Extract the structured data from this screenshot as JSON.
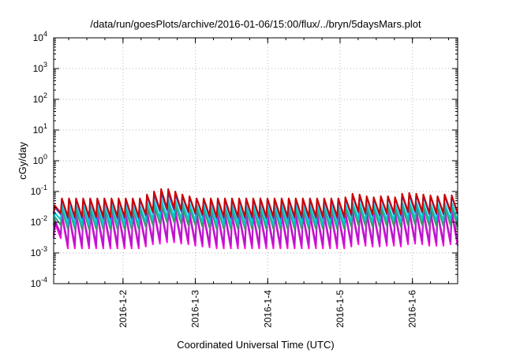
{
  "chart_data": {
    "type": "line",
    "title": "/data/run/goesPlots/archive/2016-01-06/15:00/flux/../bryn/5daysMars.plot",
    "xlabel": "Coordinated Universal Time (UTC)",
    "ylabel": "cGy/day",
    "y_scale": "log",
    "ylim": [
      0.0001,
      10000
    ],
    "xlim": [
      "2016-01-01 01:00",
      "2016-01-06 15:00"
    ],
    "grid": true,
    "x_ticks": [
      "2016-1-2",
      "2016-1-3",
      "2016-1-4",
      "2016-1-5",
      "2016-1-6"
    ],
    "y_ticks": [
      {
        "base": "10",
        "exp": "-4"
      },
      {
        "base": "10",
        "exp": "-3"
      },
      {
        "base": "10",
        "exp": "-2"
      },
      {
        "base": "10",
        "exp": "-1"
      },
      {
        "base": "10",
        "exp": "0"
      },
      {
        "base": "10",
        "exp": "1"
      },
      {
        "base": "10",
        "exp": "2"
      },
      {
        "base": "10",
        "exp": "3"
      },
      {
        "base": "10",
        "exp": "4"
      }
    ],
    "series": [
      {
        "color": "#cc0000",
        "peaks": [
          0.035,
          0.06,
          0.06,
          0.06,
          0.06,
          0.06,
          0.06,
          0.06,
          0.06,
          0.06,
          0.06,
          0.06,
          0.06,
          0.08,
          0.1,
          0.12,
          0.12,
          0.1,
          0.08,
          0.07,
          0.06,
          0.06,
          0.06,
          0.06,
          0.06,
          0.06,
          0.06,
          0.06,
          0.06,
          0.06,
          0.06,
          0.06,
          0.06,
          0.06,
          0.06,
          0.06,
          0.06,
          0.06,
          0.06,
          0.06,
          0.06,
          0.065,
          0.085,
          0.08,
          0.07,
          0.065,
          0.07,
          0.07,
          0.065,
          0.085,
          0.09,
          0.085,
          0.08,
          0.075,
          0.07,
          0.08,
          0.075
        ],
        "troughs": [
          0.02,
          0.015,
          0.015,
          0.015,
          0.015,
          0.015,
          0.015,
          0.015,
          0.015,
          0.015,
          0.015,
          0.015,
          0.018,
          0.022,
          0.025,
          0.028,
          0.028,
          0.025,
          0.022,
          0.02,
          0.018,
          0.016,
          0.015,
          0.015,
          0.015,
          0.015,
          0.015,
          0.015,
          0.015,
          0.015,
          0.015,
          0.015,
          0.015,
          0.015,
          0.015,
          0.015,
          0.015,
          0.015,
          0.015,
          0.015,
          0.015,
          0.018,
          0.022,
          0.02,
          0.018,
          0.018,
          0.02,
          0.02,
          0.018,
          0.022,
          0.024,
          0.022,
          0.02,
          0.02,
          0.02,
          0.022,
          0.02
        ]
      },
      {
        "color": "#1f5fd6",
        "peaks": [
          0.03,
          0.055,
          0.055,
          0.055,
          0.055,
          0.055,
          0.055,
          0.055,
          0.055,
          0.055,
          0.055,
          0.055,
          0.055,
          0.07,
          0.08,
          0.09,
          0.09,
          0.08,
          0.07,
          0.065,
          0.06,
          0.055,
          0.055,
          0.055,
          0.055,
          0.055,
          0.055,
          0.055,
          0.055,
          0.055,
          0.055,
          0.055,
          0.055,
          0.055,
          0.055,
          0.055,
          0.055,
          0.055,
          0.055,
          0.055,
          0.055,
          0.06,
          0.075,
          0.07,
          0.065,
          0.06,
          0.065,
          0.065,
          0.06,
          0.075,
          0.08,
          0.075,
          0.07,
          0.068,
          0.065,
          0.07,
          0.068
        ],
        "troughs": [
          0.018,
          0.013,
          0.013,
          0.013,
          0.013,
          0.013,
          0.013,
          0.013,
          0.013,
          0.013,
          0.013,
          0.013,
          0.016,
          0.02,
          0.022,
          0.024,
          0.024,
          0.022,
          0.02,
          0.018,
          0.016,
          0.014,
          0.013,
          0.013,
          0.013,
          0.013,
          0.013,
          0.013,
          0.013,
          0.013,
          0.013,
          0.013,
          0.013,
          0.013,
          0.013,
          0.013,
          0.013,
          0.013,
          0.013,
          0.013,
          0.013,
          0.016,
          0.02,
          0.018,
          0.016,
          0.016,
          0.018,
          0.018,
          0.016,
          0.02,
          0.021,
          0.02,
          0.018,
          0.018,
          0.018,
          0.02,
          0.018
        ]
      },
      {
        "color": "#00c8c8",
        "peaks": [
          0.02,
          0.035,
          0.035,
          0.035,
          0.035,
          0.035,
          0.035,
          0.035,
          0.035,
          0.035,
          0.035,
          0.035,
          0.035,
          0.045,
          0.05,
          0.055,
          0.055,
          0.05,
          0.045,
          0.04,
          0.038,
          0.035,
          0.035,
          0.035,
          0.035,
          0.035,
          0.035,
          0.035,
          0.035,
          0.035,
          0.035,
          0.035,
          0.035,
          0.035,
          0.035,
          0.035,
          0.035,
          0.035,
          0.035,
          0.035,
          0.035,
          0.038,
          0.045,
          0.042,
          0.04,
          0.038,
          0.04,
          0.04,
          0.038,
          0.045,
          0.048,
          0.045,
          0.042,
          0.041,
          0.04,
          0.042,
          0.041
        ],
        "troughs": [
          0.012,
          0.008,
          0.008,
          0.008,
          0.008,
          0.008,
          0.008,
          0.008,
          0.008,
          0.008,
          0.008,
          0.008,
          0.01,
          0.012,
          0.013,
          0.014,
          0.014,
          0.013,
          0.012,
          0.011,
          0.01,
          0.009,
          0.008,
          0.008,
          0.008,
          0.008,
          0.008,
          0.008,
          0.008,
          0.008,
          0.008,
          0.008,
          0.008,
          0.008,
          0.008,
          0.008,
          0.008,
          0.008,
          0.008,
          0.008,
          0.008,
          0.01,
          0.012,
          0.011,
          0.01,
          0.01,
          0.011,
          0.011,
          0.01,
          0.012,
          0.013,
          0.012,
          0.011,
          0.011,
          0.011,
          0.012,
          0.011
        ]
      },
      {
        "color": "#3a9a6a",
        "peaks": [
          0.015,
          0.028,
          0.028,
          0.028,
          0.028,
          0.028,
          0.028,
          0.028,
          0.028,
          0.028,
          0.028,
          0.028,
          0.028,
          0.032,
          0.035,
          0.038,
          0.038,
          0.035,
          0.032,
          0.03,
          0.029,
          0.028,
          0.028,
          0.028,
          0.028,
          0.028,
          0.028,
          0.028,
          0.028,
          0.028,
          0.028,
          0.028,
          0.028,
          0.028,
          0.028,
          0.028,
          0.028,
          0.028,
          0.028,
          0.028,
          0.028,
          0.03,
          0.034,
          0.032,
          0.031,
          0.03,
          0.031,
          0.031,
          0.03,
          0.034,
          0.036,
          0.034,
          0.032,
          0.032,
          0.031,
          0.032,
          0.032
        ],
        "troughs": [
          0.008,
          0.006,
          0.006,
          0.006,
          0.006,
          0.006,
          0.006,
          0.006,
          0.006,
          0.006,
          0.006,
          0.006,
          0.007,
          0.008,
          0.009,
          0.01,
          0.01,
          0.009,
          0.008,
          0.008,
          0.007,
          0.0065,
          0.006,
          0.006,
          0.006,
          0.006,
          0.006,
          0.006,
          0.006,
          0.006,
          0.006,
          0.006,
          0.006,
          0.006,
          0.006,
          0.006,
          0.006,
          0.006,
          0.006,
          0.006,
          0.006,
          0.007,
          0.008,
          0.0075,
          0.007,
          0.007,
          0.0075,
          0.0075,
          0.007,
          0.008,
          0.0085,
          0.008,
          0.0075,
          0.0075,
          0.0075,
          0.008,
          0.0075
        ]
      },
      {
        "color": "#b21ac8",
        "peaks": [
          0.012,
          0.02,
          0.02,
          0.02,
          0.02,
          0.02,
          0.02,
          0.02,
          0.02,
          0.02,
          0.02,
          0.02,
          0.02,
          0.024,
          0.026,
          0.028,
          0.028,
          0.026,
          0.024,
          0.022,
          0.021,
          0.02,
          0.02,
          0.02,
          0.02,
          0.02,
          0.02,
          0.02,
          0.02,
          0.02,
          0.02,
          0.02,
          0.02,
          0.02,
          0.02,
          0.02,
          0.02,
          0.02,
          0.02,
          0.02,
          0.02,
          0.022,
          0.025,
          0.024,
          0.023,
          0.022,
          0.023,
          0.023,
          0.022,
          0.025,
          0.026,
          0.025,
          0.024,
          0.024,
          0.023,
          0.024,
          0.024
        ],
        "troughs": [
          0.004,
          0.0018,
          0.0018,
          0.0018,
          0.0018,
          0.0018,
          0.0018,
          0.0018,
          0.0018,
          0.0018,
          0.0018,
          0.0018,
          0.002,
          0.0024,
          0.0026,
          0.0028,
          0.0028,
          0.0026,
          0.0024,
          0.0022,
          0.002,
          0.0019,
          0.0018,
          0.0018,
          0.0018,
          0.0018,
          0.0018,
          0.0018,
          0.0018,
          0.0018,
          0.0018,
          0.0018,
          0.0018,
          0.0018,
          0.0018,
          0.0018,
          0.0018,
          0.0018,
          0.0018,
          0.0018,
          0.0018,
          0.002,
          0.0024,
          0.0022,
          0.002,
          0.002,
          0.0022,
          0.0022,
          0.002,
          0.0024,
          0.0025,
          0.0024,
          0.0022,
          0.0022,
          0.0022,
          0.0024,
          0.0022
        ]
      },
      {
        "color": "#ff00e6",
        "peaks": [
          0.01,
          0.016,
          0.016,
          0.016,
          0.016,
          0.016,
          0.016,
          0.016,
          0.016,
          0.016,
          0.016,
          0.016,
          0.016,
          0.019,
          0.021,
          0.023,
          0.023,
          0.021,
          0.019,
          0.018,
          0.017,
          0.016,
          0.016,
          0.016,
          0.016,
          0.016,
          0.016,
          0.016,
          0.016,
          0.016,
          0.016,
          0.016,
          0.016,
          0.016,
          0.016,
          0.016,
          0.016,
          0.016,
          0.016,
          0.016,
          0.016,
          0.018,
          0.02,
          0.019,
          0.018,
          0.018,
          0.019,
          0.019,
          0.018,
          0.02,
          0.021,
          0.02,
          0.019,
          0.019,
          0.019,
          0.02,
          0.019
        ],
        "troughs": [
          0.003,
          0.0014,
          0.0014,
          0.0014,
          0.0014,
          0.0014,
          0.0014,
          0.0014,
          0.0014,
          0.0014,
          0.0014,
          0.0014,
          0.0016,
          0.0019,
          0.002,
          0.0022,
          0.0022,
          0.002,
          0.0019,
          0.0017,
          0.0016,
          0.0015,
          0.0014,
          0.0014,
          0.0014,
          0.0014,
          0.0014,
          0.0014,
          0.0014,
          0.0014,
          0.0014,
          0.0014,
          0.0014,
          0.0014,
          0.0014,
          0.0014,
          0.0014,
          0.0014,
          0.0014,
          0.0014,
          0.0014,
          0.0016,
          0.0019,
          0.0017,
          0.0016,
          0.0016,
          0.0017,
          0.0017,
          0.0016,
          0.0019,
          0.002,
          0.0019,
          0.0017,
          0.0017,
          0.0017,
          0.0019,
          0.0017
        ]
      }
    ]
  }
}
